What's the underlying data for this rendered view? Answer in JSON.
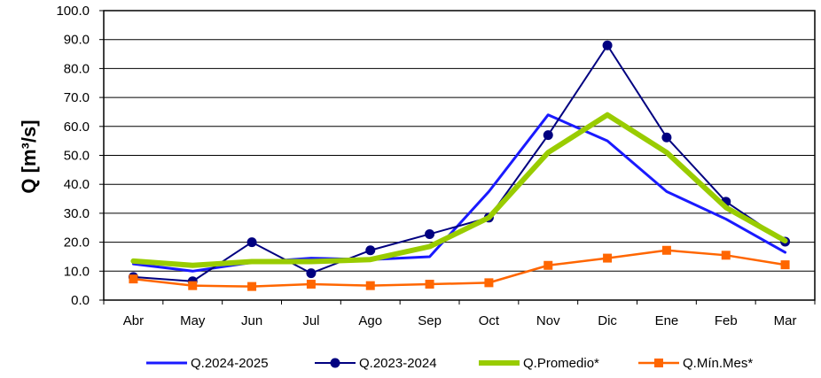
{
  "chart_data": {
    "type": "line",
    "ylabel": "Q [m³/s]",
    "ylim": [
      0,
      100
    ],
    "yticks": [
      "0.0",
      "10.0",
      "20.0",
      "30.0",
      "40.0",
      "50.0",
      "60.0",
      "70.0",
      "80.0",
      "90.0",
      "100.0"
    ],
    "grid": true,
    "legend_position": "bottom",
    "categories": [
      "Abr",
      "May",
      "Jun",
      "Jul",
      "Ago",
      "Sep",
      "Oct",
      "Nov",
      "Dic",
      "Ene",
      "Feb",
      "Mar"
    ],
    "series": [
      {
        "name": "Q.2024-2025",
        "color": "#1a1aff",
        "marker": "none",
        "width": 3,
        "values": [
          12.5,
          10.0,
          13.0,
          14.5,
          14.0,
          15.0,
          37.5,
          64.0,
          55.0,
          37.5,
          28.0,
          16.5
        ]
      },
      {
        "name": "Q.2023-2024",
        "color": "#000080",
        "marker": "circle",
        "width": 2,
        "values": [
          8.0,
          6.5,
          20.0,
          9.3,
          17.2,
          22.8,
          28.5,
          57.0,
          88.0,
          56.2,
          34.0,
          20.2
        ]
      },
      {
        "name": "Q.Promedio*",
        "color": "#99cc00",
        "marker": "none",
        "width": 6,
        "values": [
          13.5,
          12.0,
          13.3,
          13.3,
          14.0,
          18.5,
          28.5,
          51.0,
          64.0,
          51.0,
          32.0,
          20.5
        ]
      },
      {
        "name": "Q.Mín.Mes*",
        "color": "#ff6600",
        "marker": "square",
        "width": 2.5,
        "values": [
          7.3,
          5.0,
          4.7,
          5.5,
          5.0,
          5.5,
          6.0,
          12.0,
          14.5,
          17.2,
          15.5,
          12.2
        ]
      }
    ]
  }
}
